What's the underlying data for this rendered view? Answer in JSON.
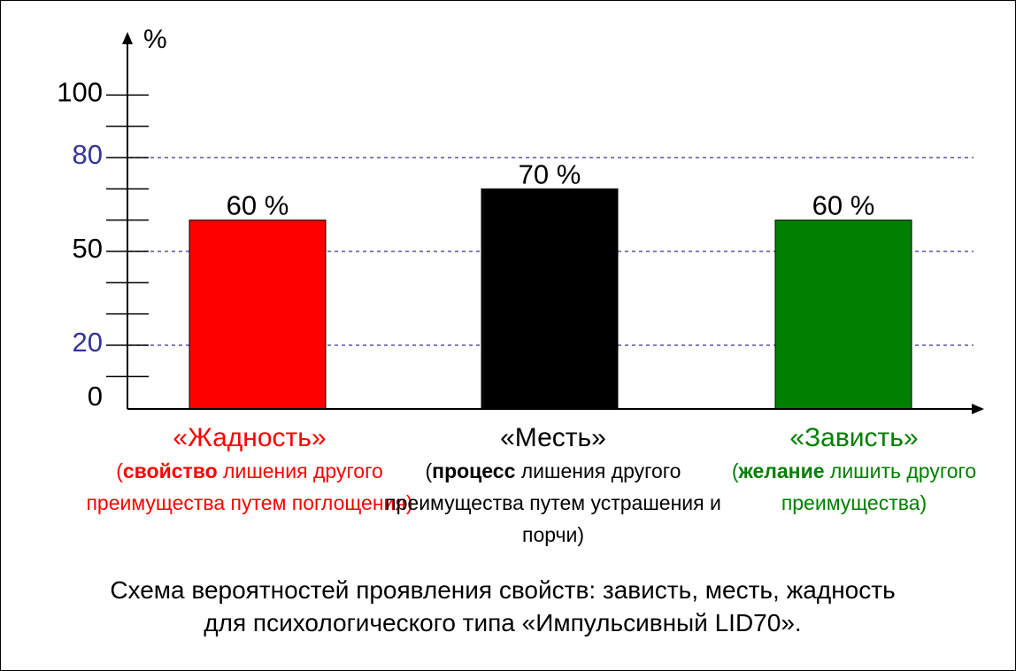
{
  "chart_data": {
    "type": "bar",
    "y_unit": "%",
    "ylim": [
      0,
      100
    ],
    "y_ticks": [
      0,
      20,
      50,
      80,
      100
    ],
    "reference_lines": [
      20,
      50,
      80
    ],
    "categories": [
      {
        "name": "«Жадность»",
        "desc_prefix": "(",
        "desc_bold": "свойство",
        "desc_rest": " лишения другого преимущества путем поглощения)",
        "value": 60,
        "label": "60 %",
        "color": "#ff0000"
      },
      {
        "name": "«Месть»",
        "desc_prefix": "(",
        "desc_bold": "процесс",
        "desc_rest": " лишения другого преимущества путем устрашения и порчи)",
        "value": 70,
        "label": "70 %",
        "color": "#000000"
      },
      {
        "name": "«Зависть»",
        "desc_prefix": "(",
        "desc_bold": "желание",
        "desc_rest": " лишить другого преимущества)",
        "value": 60,
        "label": "60 %",
        "color": "#008000"
      }
    ],
    "colors": {
      "axis": "#000000",
      "highlight_tick": "#333399",
      "reference_line": "#333399"
    }
  },
  "caption": {
    "line1": "Схема вероятностей проявления свойств: зависть, месть, жадность",
    "line2": "для психологического типа «Импульсивный LID70»."
  }
}
